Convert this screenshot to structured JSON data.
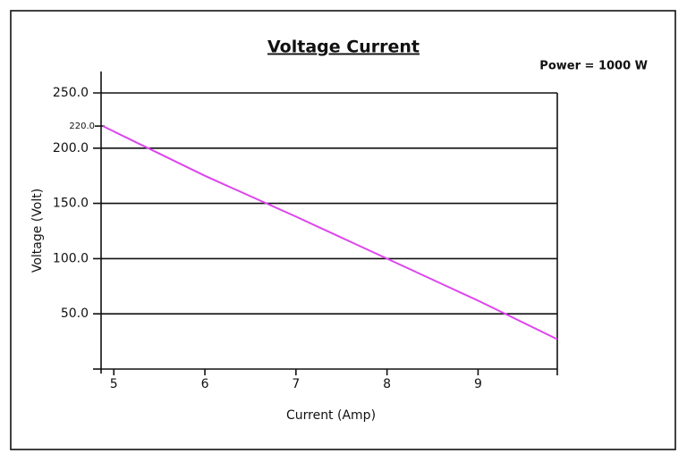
{
  "chart_data": {
    "type": "line",
    "title": "Voltage Current",
    "annotation": "Power = 1000 W",
    "x_label": "Current (Amp)",
    "y_label": "Voltage (Volt)",
    "x": [
      4.88,
      6,
      7,
      8,
      9,
      9.87
    ],
    "series": [
      {
        "name": "Voltage",
        "color": "#dd44ee",
        "values": [
          220,
          175,
          138,
          100,
          62,
          27
        ]
      }
    ],
    "xlim": [
      4.86,
      9.87
    ],
    "ylim": [
      0,
      250
    ],
    "xticks": [
      5,
      6,
      7,
      8,
      9
    ],
    "yticks": [
      {
        "value": 50,
        "label": "50.0"
      },
      {
        "value": 100,
        "label": "100.0"
      },
      {
        "value": 150,
        "label": "150.0"
      },
      {
        "value": 200,
        "label": "200.0"
      },
      {
        "value": 250,
        "label": "250.0"
      }
    ],
    "highlight_tick": {
      "value": 220,
      "label": "220.0"
    },
    "grid": true
  }
}
